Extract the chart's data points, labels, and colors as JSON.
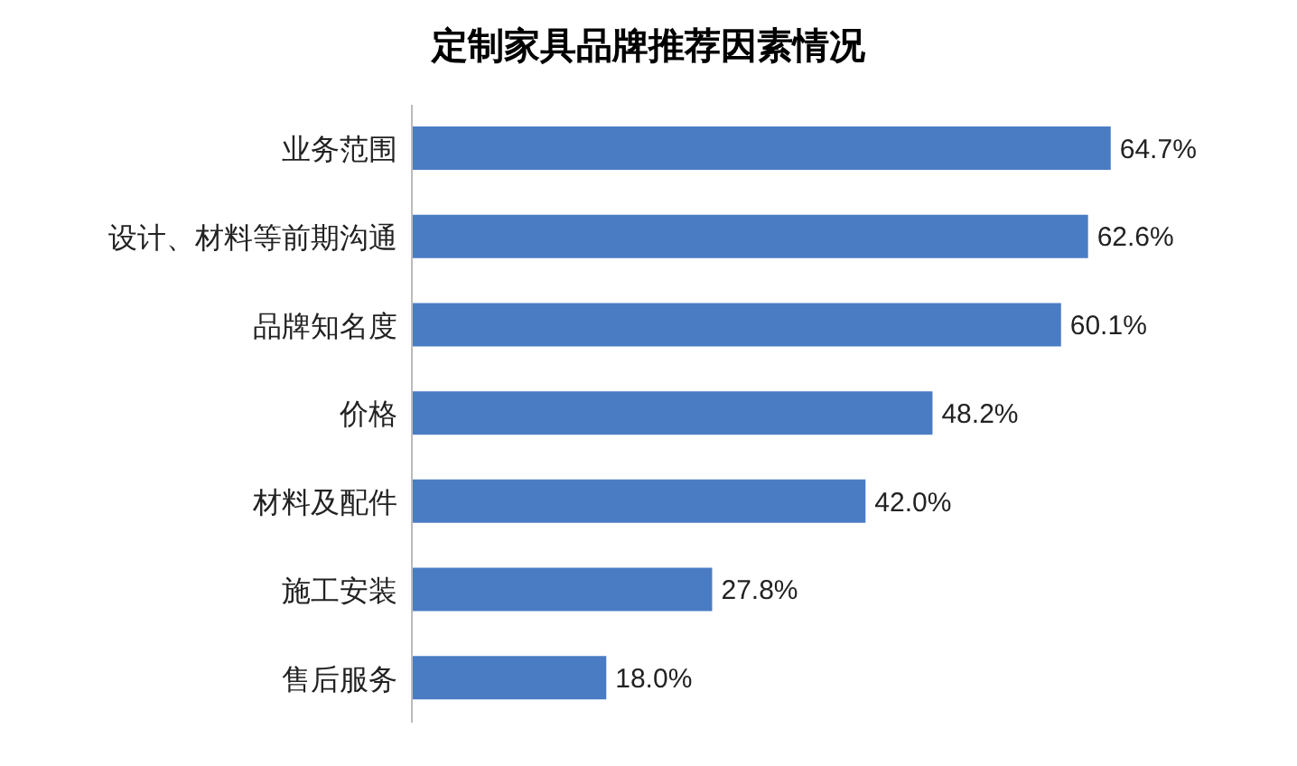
{
  "chart_data": {
    "type": "bar",
    "orientation": "horizontal",
    "title": "定制家具品牌推荐因素情况",
    "categories": [
      "业务范围",
      "设计、材料等前期沟通",
      "品牌知名度",
      "价格",
      "材料及配件",
      "施工安装",
      "售后服务"
    ],
    "values": [
      64.7,
      62.6,
      60.1,
      48.2,
      42.0,
      27.8,
      18.0
    ],
    "value_labels": [
      "64.7%",
      "62.6%",
      "60.1%",
      "48.2%",
      "42.0%",
      "27.8%",
      "18.0%"
    ],
    "color": "#4a7cc4",
    "tick_labels": "y",
    "grid": false
  }
}
